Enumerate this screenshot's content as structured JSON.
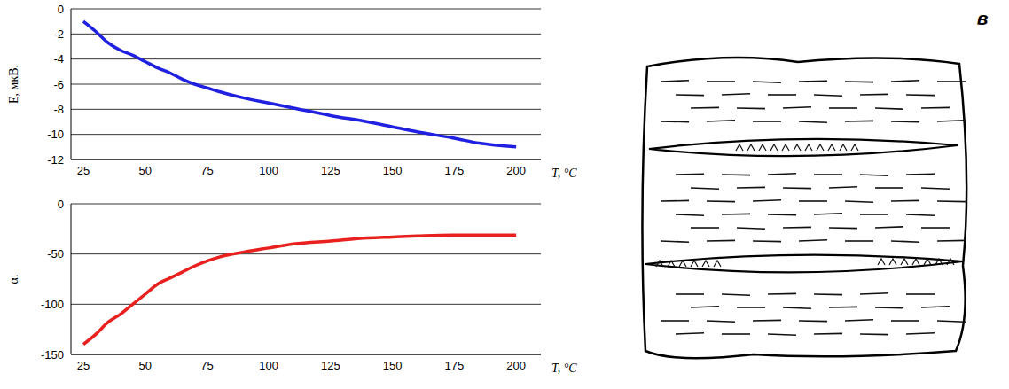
{
  "chart_data": [
    {
      "type": "line",
      "x_label": "T, °C",
      "y_label": "E, мкВ.",
      "x": [
        25,
        30,
        35,
        40,
        45,
        50,
        55,
        60,
        65,
        70,
        75,
        80,
        90,
        100,
        110,
        125,
        140,
        150,
        160,
        175,
        185,
        200
      ],
      "values": [
        -1,
        -1.8,
        -2.7,
        -3.3,
        -3.7,
        -4.2,
        -4.7,
        -5.1,
        -5.6,
        -6.0,
        -6.3,
        -6.6,
        -7.1,
        -7.5,
        -7.9,
        -8.5,
        -9.0,
        -9.4,
        -9.8,
        -10.3,
        -10.7,
        -11.0
      ],
      "color": "#2020e0",
      "xlim": [
        20,
        210
      ],
      "xticks": [
        25,
        50,
        75,
        100,
        125,
        150,
        175,
        200
      ],
      "ylim": [
        -12,
        0
      ],
      "yticks": [
        -12,
        -10,
        -8,
        -6,
        -4,
        -2,
        0
      ],
      "grid": true
    },
    {
      "type": "line",
      "x_label": "T, °C",
      "y_label": "α.",
      "x": [
        25,
        30,
        35,
        40,
        45,
        50,
        55,
        60,
        65,
        70,
        75,
        80,
        90,
        100,
        110,
        125,
        140,
        150,
        160,
        175,
        200
      ],
      "values": [
        -140,
        -130,
        -118,
        -110,
        -100,
        -90,
        -80,
        -74,
        -68,
        -62,
        -57,
        -53,
        -48,
        -44,
        -40,
        -37,
        -34,
        -33,
        -32,
        -31,
        -31
      ],
      "color": "#e8201e",
      "xlim": [
        20,
        210
      ],
      "xticks": [
        25,
        50,
        75,
        100,
        125,
        150,
        175,
        200
      ],
      "ylim": [
        -150,
        0
      ],
      "yticks": [
        -150,
        -100,
        -50,
        0
      ],
      "grid": true
    }
  ],
  "figure": {
    "panel_label": "в"
  }
}
